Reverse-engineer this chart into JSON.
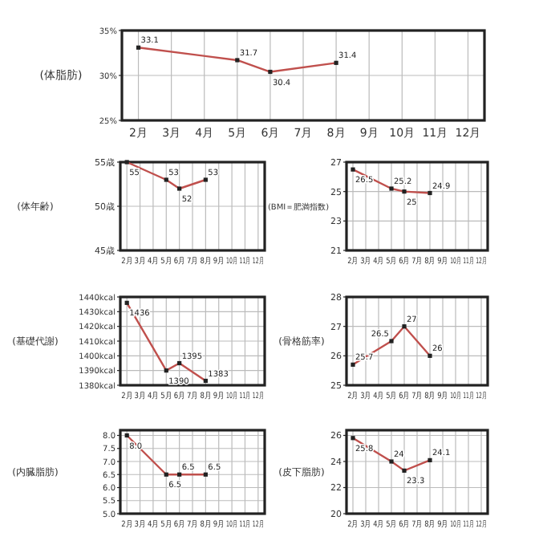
{
  "chart_data": [
    {
      "type": "line",
      "ylabel": "(体脂肪)",
      "categories": [
        "2月",
        "3月",
        "4月",
        "5月",
        "6月",
        "7月",
        "8月",
        "9月",
        "10月",
        "11月",
        "12月"
      ],
      "ylim": [
        25,
        35
      ],
      "yticks": [
        {
          "value": 25,
          "label": "25%"
        },
        {
          "value": 30,
          "label": "30%"
        },
        {
          "value": 35,
          "label": "35%"
        }
      ],
      "series": [
        {
          "color": "#c0504d",
          "values": [
            33.1,
            null,
            null,
            31.7,
            30.4,
            null,
            31.4,
            null,
            null,
            null,
            null
          ]
        }
      ],
      "data_labels": true,
      "grid": true,
      "marker": "square"
    },
    {
      "type": "line",
      "ylabel": "(体年齢)",
      "categories": [
        "2月",
        "3月",
        "4月",
        "5月",
        "6月",
        "7月",
        "8月",
        "9月",
        "10月",
        "11月",
        "12月"
      ],
      "ylim": [
        45,
        55
      ],
      "yticks": [
        {
          "value": 45,
          "label": "45歳"
        },
        {
          "value": 50,
          "label": "50歳"
        },
        {
          "value": 55,
          "label": "55歳"
        }
      ],
      "series": [
        {
          "color": "#c0504d",
          "values": [
            55,
            null,
            null,
            53,
            52,
            null,
            53,
            null,
            null,
            null,
            null
          ]
        }
      ],
      "data_labels": true,
      "grid": true,
      "marker": "square"
    },
    {
      "type": "line",
      "ylabel": "(BMI＝肥満指数)",
      "categories": [
        "2月",
        "3月",
        "4月",
        "5月",
        "6月",
        "7月",
        "8月",
        "9月",
        "10月",
        "11月",
        "12月"
      ],
      "ylim": [
        21,
        27
      ],
      "yticks": [
        21,
        23,
        25,
        27
      ],
      "series": [
        {
          "color": "#c0504d",
          "values": [
            26.5,
            null,
            null,
            25.2,
            25,
            null,
            24.9,
            null,
            null,
            null,
            null
          ]
        }
      ],
      "data_labels": true,
      "grid": true,
      "marker": "square"
    },
    {
      "type": "line",
      "ylabel": "(基礎代謝)",
      "categories": [
        "2月",
        "3月",
        "4月",
        "5月",
        "6月",
        "7月",
        "8月",
        "9月",
        "10月",
        "11月",
        "12月"
      ],
      "ylim": [
        1380,
        1440
      ],
      "yticks": [
        {
          "value": 1380,
          "label": "1380kcal"
        },
        {
          "value": 1390,
          "label": "1390kcal"
        },
        {
          "value": 1400,
          "label": "1400kcal"
        },
        {
          "value": 1410,
          "label": "1410kcal"
        },
        {
          "value": 1420,
          "label": "1420kcal"
        },
        {
          "value": 1430,
          "label": "1430kcal"
        },
        {
          "value": 1440,
          "label": "1440kcal"
        }
      ],
      "series": [
        {
          "color": "#c0504d",
          "values": [
            1436,
            null,
            null,
            1390,
            1395,
            null,
            1383,
            null,
            null,
            null,
            null
          ]
        }
      ],
      "data_labels": true,
      "grid": true,
      "marker": "square"
    },
    {
      "type": "line",
      "ylabel": "(骨格筋率)",
      "categories": [
        "2月",
        "3月",
        "4月",
        "5月",
        "6月",
        "7月",
        "8月",
        "9月",
        "10月",
        "11月",
        "12月"
      ],
      "ylim": [
        25,
        28
      ],
      "yticks": [
        25,
        26,
        27,
        28
      ],
      "series": [
        {
          "color": "#c0504d",
          "values": [
            25.7,
            null,
            null,
            26.5,
            27,
            null,
            26,
            null,
            null,
            null,
            null
          ]
        }
      ],
      "data_labels": true,
      "grid": true,
      "marker": "square"
    },
    {
      "type": "line",
      "ylabel": "(内臓脂肪)",
      "categories": [
        "2月",
        "3月",
        "4月",
        "5月",
        "6月",
        "7月",
        "8月",
        "9月",
        "10月",
        "11月",
        "12月"
      ],
      "ylim": [
        5,
        8.2
      ],
      "yticks": [
        {
          "value": 5,
          "label": "5.0"
        },
        {
          "value": 5.5,
          "label": "5.5"
        },
        {
          "value": 6,
          "label": "6.0"
        },
        {
          "value": 6.5,
          "label": "6.5"
        },
        {
          "value": 7,
          "label": "7.0"
        },
        {
          "value": 7.5,
          "label": "7.5"
        },
        {
          "value": 8,
          "label": "8.0"
        }
      ],
      "series": [
        {
          "color": "#c0504d",
          "values": [
            8,
            null,
            null,
            6.5,
            6.5,
            null,
            6.5,
            null,
            null,
            null,
            null
          ],
          "value_labels": [
            "8.0",
            null,
            null,
            "6.5",
            "6.5",
            null,
            "6.5",
            null,
            null,
            null,
            null
          ]
        }
      ],
      "grid": true,
      "marker": "square"
    },
    {
      "type": "line",
      "ylabel": "(皮下脂肪)",
      "categories": [
        "2月",
        "3月",
        "4月",
        "5月",
        "6月",
        "7月",
        "8月",
        "9月",
        "10月",
        "11月",
        "12月"
      ],
      "ylim": [
        20,
        26.4
      ],
      "yticks": [
        20,
        22,
        24,
        26
      ],
      "series": [
        {
          "color": "#c0504d",
          "values": [
            25.8,
            null,
            null,
            24,
            23.3,
            null,
            24.1,
            null,
            null,
            null,
            null
          ]
        }
      ],
      "data_labels": true,
      "grid": true,
      "marker": "square"
    }
  ]
}
